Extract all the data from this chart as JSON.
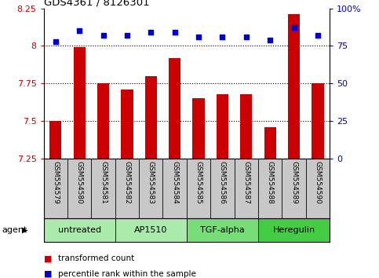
{
  "title": "GDS4361 / 8126301",
  "samples": [
    "GSM554579",
    "GSM554580",
    "GSM554581",
    "GSM554582",
    "GSM554583",
    "GSM554584",
    "GSM554585",
    "GSM554586",
    "GSM554587",
    "GSM554588",
    "GSM554589",
    "GSM554590"
  ],
  "bar_values": [
    7.5,
    7.99,
    7.75,
    7.71,
    7.8,
    7.92,
    7.65,
    7.68,
    7.68,
    7.46,
    8.21,
    7.75
  ],
  "percentile_values": [
    78,
    85,
    82,
    82,
    84,
    84,
    81,
    81,
    81,
    79,
    87,
    82
  ],
  "bar_color": "#CC0000",
  "dot_color": "#0000CC",
  "ylim_left": [
    7.25,
    8.25
  ],
  "ylim_right": [
    0,
    100
  ],
  "yticks_left": [
    7.25,
    7.5,
    7.75,
    8.0,
    8.25
  ],
  "yticks_right": [
    0,
    25,
    50,
    75,
    100
  ],
  "ytick_labels_left": [
    "7.25",
    "7.5",
    "7.75",
    "8",
    "8.25"
  ],
  "ytick_labels_right": [
    "0",
    "25",
    "50",
    "75",
    "100%"
  ],
  "grid_lines": [
    7.5,
    7.75,
    8.0
  ],
  "agent_groups": [
    {
      "label": "untreated",
      "start": 0,
      "end": 3,
      "color": "#AAEAAA"
    },
    {
      "label": "AP1510",
      "start": 3,
      "end": 6,
      "color": "#AAEAAA"
    },
    {
      "label": "TGF-alpha",
      "start": 6,
      "end": 9,
      "color": "#77DD77"
    },
    {
      "label": "Heregulin",
      "start": 9,
      "end": 12,
      "color": "#44CC44"
    }
  ],
  "agent_label": "agent",
  "legend_items": [
    {
      "color": "#CC0000",
      "label": "transformed count"
    },
    {
      "color": "#0000CC",
      "label": "percentile rank within the sample"
    }
  ],
  "background_color": "#FFFFFF",
  "sample_label_bg": "#C8C8C8",
  "tick_label_color_left": "#CC0000",
  "tick_label_color_right": "#0000CC",
  "bar_width": 0.5
}
